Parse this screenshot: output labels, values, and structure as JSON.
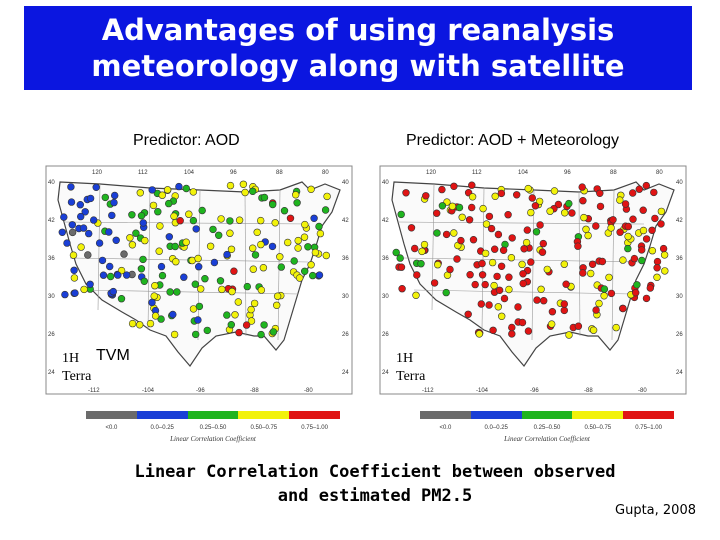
{
  "title": {
    "line1": "Advantages of using reanalysis",
    "line2": "meteorology along with satellite"
  },
  "panels": [
    {
      "label": "Predictor: AOD",
      "corner_line1": "1H",
      "corner_line2": "Terra",
      "overlay_label": "TVM"
    },
    {
      "label": "Predictor:  AOD + Meteorology",
      "corner_line1": "1H",
      "corner_line2": "Terra"
    }
  ],
  "legend": {
    "title": "Linear Correlation Coefficient",
    "bins": [
      "<0.0",
      "0.0–0.25",
      "0.25–0.50",
      "0.50–0.75",
      "0.75–1.00"
    ],
    "colors": [
      "#6b6b6b",
      "#1a3fd6",
      "#1fb41f",
      "#f2f20a",
      "#e01414"
    ]
  },
  "map_ticks": {
    "top_lon": [
      "120",
      "112",
      "104",
      "96",
      "88",
      "80"
    ],
    "bottom_lon": [
      "-112",
      "-104",
      "-96",
      "-88",
      "-80"
    ],
    "lat": [
      "40",
      "42",
      "36",
      "30",
      "26",
      "24"
    ]
  },
  "caption": {
    "line1": "Linear Correlation Coefficient between observed",
    "line2": "and estimated PM2.5"
  },
  "credit": "Gupta, 2008"
}
